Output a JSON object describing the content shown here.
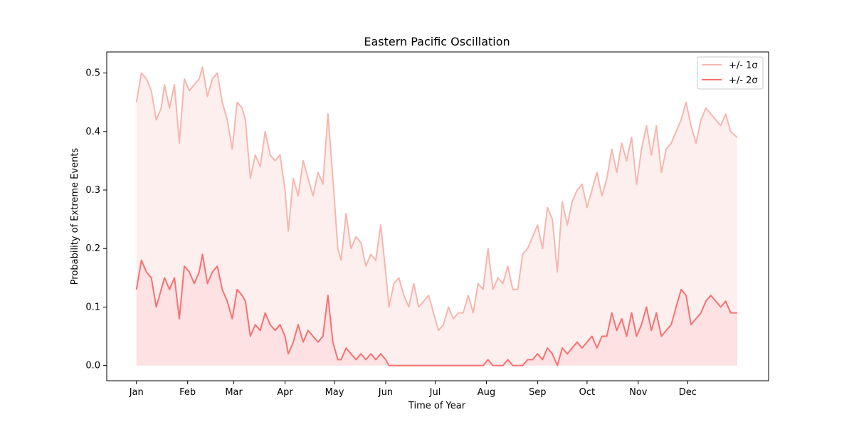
{
  "chart_data": {
    "type": "area",
    "title": "Eastern Pacific Oscillation",
    "xlabel": "Time of Year",
    "ylabel": "Probability of Extreme Events",
    "ylim": [
      -0.026,
      0.536
    ],
    "xlim": [
      -18,
      383
    ],
    "x_unit": "day of year",
    "yticks": [
      0.0,
      0.1,
      0.2,
      0.3,
      0.4,
      0.5
    ],
    "ytick_labels": [
      "0.0",
      "0.1",
      "0.2",
      "0.3",
      "0.4",
      "0.5"
    ],
    "month_days": [
      0,
      31,
      59,
      90,
      120,
      151,
      181,
      212,
      243,
      273,
      304,
      334
    ],
    "month_labels": [
      "Jan",
      "Feb",
      "Mar",
      "Apr",
      "May",
      "Jun",
      "Jul",
      "Aug",
      "Sep",
      "Oct",
      "Nov",
      "Dec"
    ],
    "grid": false,
    "legend_position": "top-right",
    "series": [
      {
        "name": "+/- 1σ",
        "line_color": "#f7b6ae",
        "fill_color": "#fcefed",
        "x": [
          0,
          3,
          6,
          9,
          12,
          15,
          17,
          20,
          23,
          26,
          29,
          32,
          35,
          38,
          40,
          43,
          46,
          49,
          52,
          55,
          58,
          61,
          64,
          66,
          69,
          72,
          75,
          78,
          81,
          84,
          87,
          90,
          92,
          95,
          98,
          101,
          104,
          107,
          110,
          113,
          116,
          119,
          122,
          124,
          127,
          130,
          133,
          136,
          139,
          142,
          145,
          148,
          151,
          153,
          156,
          159,
          162,
          165,
          168,
          171,
          174,
          177,
          180,
          183,
          186,
          189,
          192,
          195,
          198,
          201,
          204,
          207,
          210,
          213,
          216,
          219,
          222,
          225,
          228,
          231,
          234,
          237,
          240,
          243,
          246,
          249,
          252,
          255,
          258,
          261,
          264,
          267,
          270,
          273,
          276,
          279,
          282,
          285,
          288,
          291,
          294,
          297,
          300,
          303,
          306,
          309,
          312,
          315,
          318,
          321,
          324,
          327,
          330,
          333,
          336,
          339,
          342,
          345,
          348,
          351,
          354,
          357,
          360,
          364
        ],
        "values": [
          0.45,
          0.5,
          0.49,
          0.47,
          0.42,
          0.44,
          0.48,
          0.44,
          0.48,
          0.38,
          0.49,
          0.47,
          0.48,
          0.49,
          0.51,
          0.46,
          0.49,
          0.5,
          0.45,
          0.42,
          0.37,
          0.45,
          0.44,
          0.42,
          0.32,
          0.36,
          0.34,
          0.4,
          0.36,
          0.35,
          0.36,
          0.3,
          0.23,
          0.32,
          0.29,
          0.35,
          0.32,
          0.29,
          0.33,
          0.31,
          0.43,
          0.32,
          0.2,
          0.18,
          0.26,
          0.2,
          0.22,
          0.21,
          0.17,
          0.19,
          0.18,
          0.24,
          0.16,
          0.1,
          0.14,
          0.15,
          0.12,
          0.1,
          0.14,
          0.1,
          0.11,
          0.12,
          0.09,
          0.06,
          0.07,
          0.1,
          0.08,
          0.09,
          0.09,
          0.12,
          0.09,
          0.14,
          0.13,
          0.2,
          0.13,
          0.15,
          0.14,
          0.17,
          0.13,
          0.13,
          0.19,
          0.2,
          0.22,
          0.24,
          0.2,
          0.27,
          0.25,
          0.16,
          0.28,
          0.24,
          0.28,
          0.3,
          0.31,
          0.27,
          0.3,
          0.33,
          0.29,
          0.32,
          0.37,
          0.33,
          0.38,
          0.35,
          0.39,
          0.31,
          0.37,
          0.41,
          0.36,
          0.41,
          0.33,
          0.37,
          0.38,
          0.4,
          0.42,
          0.45,
          0.41,
          0.38,
          0.42,
          0.44,
          0.43,
          0.42,
          0.41,
          0.43,
          0.4,
          0.39
        ]
      },
      {
        "name": "+/- 2σ",
        "line_color": "#f87171",
        "fill_color": "#fde1e3",
        "x": [
          0,
          3,
          6,
          9,
          12,
          15,
          17,
          20,
          23,
          26,
          29,
          32,
          35,
          38,
          40,
          43,
          46,
          49,
          52,
          55,
          58,
          61,
          64,
          66,
          69,
          72,
          75,
          78,
          81,
          84,
          87,
          90,
          92,
          95,
          98,
          101,
          104,
          107,
          110,
          113,
          116,
          119,
          122,
          124,
          127,
          130,
          133,
          136,
          139,
          142,
          145,
          148,
          151,
          153,
          156,
          159,
          162,
          165,
          168,
          171,
          174,
          177,
          180,
          183,
          186,
          189,
          192,
          195,
          198,
          201,
          204,
          207,
          210,
          213,
          216,
          219,
          222,
          225,
          228,
          231,
          234,
          237,
          240,
          243,
          246,
          249,
          252,
          255,
          258,
          261,
          264,
          267,
          270,
          273,
          276,
          279,
          282,
          285,
          288,
          291,
          294,
          297,
          300,
          303,
          306,
          309,
          312,
          315,
          318,
          321,
          324,
          327,
          330,
          333,
          336,
          339,
          342,
          345,
          348,
          351,
          354,
          357,
          360,
          364
        ],
        "values": [
          0.13,
          0.18,
          0.16,
          0.15,
          0.1,
          0.13,
          0.15,
          0.13,
          0.15,
          0.08,
          0.17,
          0.16,
          0.14,
          0.16,
          0.19,
          0.14,
          0.16,
          0.17,
          0.13,
          0.11,
          0.08,
          0.13,
          0.12,
          0.11,
          0.05,
          0.07,
          0.06,
          0.09,
          0.07,
          0.06,
          0.07,
          0.05,
          0.02,
          0.04,
          0.07,
          0.04,
          0.06,
          0.05,
          0.04,
          0.05,
          0.12,
          0.04,
          0.01,
          0.01,
          0.03,
          0.02,
          0.01,
          0.02,
          0.01,
          0.02,
          0.01,
          0.02,
          0.01,
          0.0,
          0.0,
          0.0,
          0.0,
          0.0,
          0.0,
          0.0,
          0.0,
          0.0,
          0.0,
          0.0,
          0.0,
          0.0,
          0.0,
          0.0,
          0.0,
          0.0,
          0.0,
          0.0,
          0.0,
          0.01,
          0.0,
          0.0,
          0.0,
          0.01,
          0.0,
          0.0,
          0.0,
          0.01,
          0.01,
          0.02,
          0.01,
          0.03,
          0.02,
          0.0,
          0.03,
          0.02,
          0.03,
          0.04,
          0.03,
          0.04,
          0.05,
          0.03,
          0.05,
          0.05,
          0.09,
          0.06,
          0.08,
          0.05,
          0.09,
          0.05,
          0.07,
          0.1,
          0.06,
          0.09,
          0.05,
          0.06,
          0.07,
          0.1,
          0.13,
          0.12,
          0.07,
          0.08,
          0.09,
          0.11,
          0.12,
          0.11,
          0.1,
          0.11,
          0.09,
          0.09
        ]
      }
    ]
  }
}
